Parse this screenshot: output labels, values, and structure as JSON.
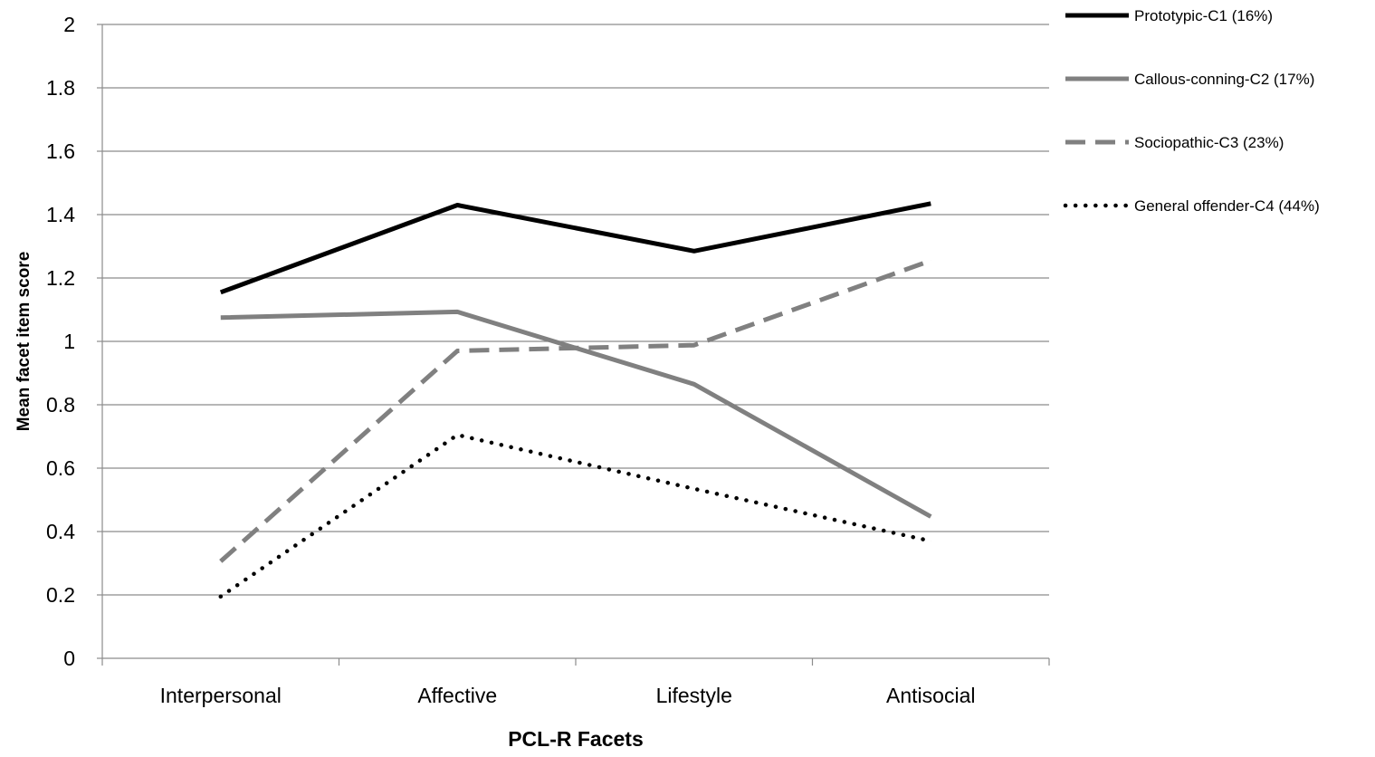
{
  "chart_data": {
    "type": "line",
    "title": "",
    "xlabel": "PCL-R Facets",
    "ylabel": "Mean facet item score",
    "categories": [
      "Interpersonal",
      "Affective",
      "Lifestyle",
      "Antisocial"
    ],
    "ylim": [
      0,
      2
    ],
    "yticks": [
      "0",
      "0.2",
      "0.4",
      "0.6",
      "0.8",
      "1",
      "1.2",
      "1.4",
      "1.6",
      "1.8",
      "2"
    ],
    "grid": true,
    "legend_position": "right",
    "series": [
      {
        "name": "Prototypic-C1 (16%)",
        "values": [
          1.155,
          1.43,
          1.285,
          1.435
        ],
        "color": "#000000",
        "style": "solid"
      },
      {
        "name": "Callous-conning-C2 (17%)",
        "values": [
          1.075,
          1.093,
          0.865,
          0.447
        ],
        "color": "#808080",
        "style": "solid"
      },
      {
        "name": "Sociopathic-C3 (23%)",
        "values": [
          0.306,
          0.97,
          0.988,
          1.255
        ],
        "color": "#808080",
        "style": "dashed"
      },
      {
        "name": "General offender-C4 (44%)",
        "values": [
          0.195,
          0.705,
          0.535,
          0.37
        ],
        "color": "#000000",
        "style": "dotted"
      }
    ]
  }
}
